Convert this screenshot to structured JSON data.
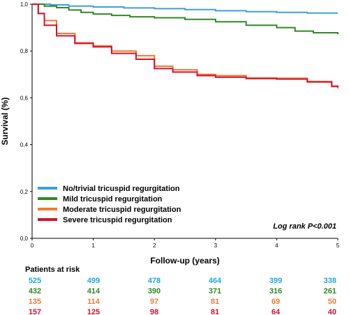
{
  "chart_data": {
    "type": "line",
    "title": "",
    "xlabel": "Follow-up (years)",
    "ylabel": "Survival (%)",
    "xlim": [
      0,
      5
    ],
    "ylim": [
      0,
      1
    ],
    "x_ticks": [
      "0",
      "1",
      "2",
      "3",
      "4",
      "5"
    ],
    "y_ticks": [
      "0,0",
      "0,2",
      "0,4",
      "0,6",
      "0,8",
      "1,0"
    ],
    "grid": false,
    "legend_position": "bottom-left",
    "annotation": "Log rank P<0.001",
    "series": [
      {
        "name": "No/trivial tricuspid regurgitation",
        "color": "#3d9fe0",
        "points": [
          [
            0,
            1.0
          ],
          [
            0.3,
            0.997
          ],
          [
            0.6,
            0.992
          ],
          [
            1.0,
            0.988
          ],
          [
            1.5,
            0.984
          ],
          [
            2.0,
            0.981
          ],
          [
            2.5,
            0.977
          ],
          [
            3.0,
            0.972
          ],
          [
            3.5,
            0.968
          ],
          [
            4.0,
            0.965
          ],
          [
            4.5,
            0.962
          ],
          [
            5.0,
            0.962
          ]
        ]
      },
      {
        "name": "Mild tricuspid regurgitation",
        "color": "#2e8a22",
        "points": [
          [
            0,
            1.0
          ],
          [
            0.2,
            0.992
          ],
          [
            0.4,
            0.985
          ],
          [
            0.6,
            0.975
          ],
          [
            0.8,
            0.965
          ],
          [
            1.0,
            0.958
          ],
          [
            1.3,
            0.952
          ],
          [
            1.6,
            0.946
          ],
          [
            2.0,
            0.942
          ],
          [
            2.5,
            0.935
          ],
          [
            3.0,
            0.925
          ],
          [
            3.5,
            0.91
          ],
          [
            4.0,
            0.9
          ],
          [
            4.3,
            0.885
          ],
          [
            4.6,
            0.878
          ],
          [
            5.0,
            0.872
          ]
        ]
      },
      {
        "name": "Moderate tricuspid regurgitation",
        "color": "#f07a30",
        "points": [
          [
            0,
            1.0
          ],
          [
            0.1,
            0.96
          ],
          [
            0.2,
            0.93
          ],
          [
            0.4,
            0.875
          ],
          [
            0.7,
            0.835
          ],
          [
            1.0,
            0.822
          ],
          [
            1.3,
            0.8
          ],
          [
            1.7,
            0.78
          ],
          [
            2.0,
            0.735
          ],
          [
            2.3,
            0.72
          ],
          [
            2.7,
            0.7
          ],
          [
            3.0,
            0.695
          ],
          [
            3.5,
            0.685
          ],
          [
            4.0,
            0.684
          ],
          [
            4.5,
            0.67
          ],
          [
            4.9,
            0.648
          ],
          [
            5.0,
            0.64
          ]
        ]
      },
      {
        "name": "Severe tricuspid regurgitation",
        "color": "#d8102c",
        "points": [
          [
            0,
            1.0
          ],
          [
            0.1,
            0.96
          ],
          [
            0.2,
            0.91
          ],
          [
            0.4,
            0.865
          ],
          [
            0.7,
            0.832
          ],
          [
            1.0,
            0.818
          ],
          [
            1.3,
            0.79
          ],
          [
            1.7,
            0.765
          ],
          [
            2.0,
            0.725
          ],
          [
            2.3,
            0.71
          ],
          [
            2.7,
            0.695
          ],
          [
            3.0,
            0.688
          ],
          [
            3.5,
            0.682
          ],
          [
            4.0,
            0.68
          ],
          [
            4.5,
            0.668
          ],
          [
            4.9,
            0.65
          ],
          [
            5.0,
            0.645
          ]
        ]
      }
    ]
  },
  "risk_table": {
    "title": "Patients at risk",
    "rows": [
      {
        "color": "#1fa8e0",
        "values": [
          "525",
          "499",
          "478",
          "464",
          "399",
          "338"
        ]
      },
      {
        "color": "#2e8a22",
        "values": [
          "432",
          "414",
          "390",
          "371",
          "316",
          "261"
        ]
      },
      {
        "color": "#ee7b3a",
        "values": [
          "135",
          "114",
          "97",
          "81",
          "69",
          "50"
        ]
      },
      {
        "color": "#d8102c",
        "values": [
          "157",
          "125",
          "98",
          "81",
          "64",
          "40"
        ]
      }
    ]
  }
}
